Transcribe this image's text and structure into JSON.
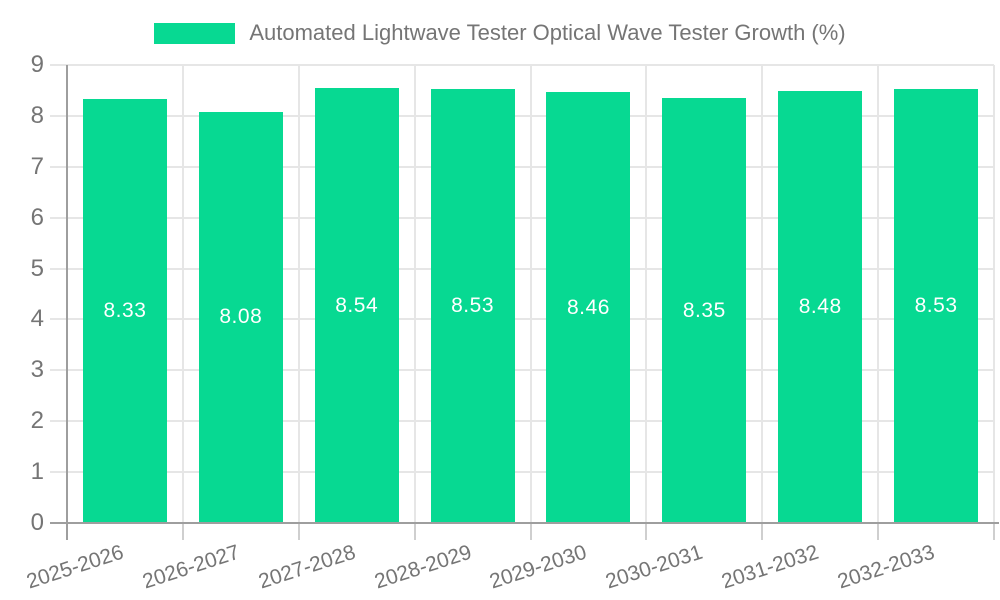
{
  "legend": {
    "label": "Automated Lightwave Tester Optical Wave Tester Growth (%)"
  },
  "chart_data": {
    "type": "bar",
    "title": "Automated Lightwave Tester Optical Wave Tester Growth (%)",
    "categories": [
      "2025-2026",
      "2026-2027",
      "2027-2028",
      "2028-2029",
      "2029-2030",
      "2030-2031",
      "2031-2032",
      "2032-2033"
    ],
    "values": [
      8.33,
      8.08,
      8.54,
      8.53,
      8.46,
      8.35,
      8.48,
      8.53
    ],
    "value_labels": [
      "8.33",
      "8.08",
      "8.54",
      "8.53",
      "8.46",
      "8.35",
      "8.48",
      "8.53"
    ],
    "xlabel": "",
    "ylabel": "",
    "ylim": [
      0,
      9
    ],
    "yticks": [
      "0",
      "1",
      "2",
      "3",
      "4",
      "5",
      "6",
      "7",
      "8",
      "9"
    ],
    "grid": true,
    "legend_position": "top-center",
    "colors": {
      "bar": "#07d992",
      "value_label": "#ffffff",
      "axis_text": "#757575",
      "axis_line": "#9e9e9e",
      "gridline": "#e6e6e6",
      "background": "#ffffff"
    }
  }
}
